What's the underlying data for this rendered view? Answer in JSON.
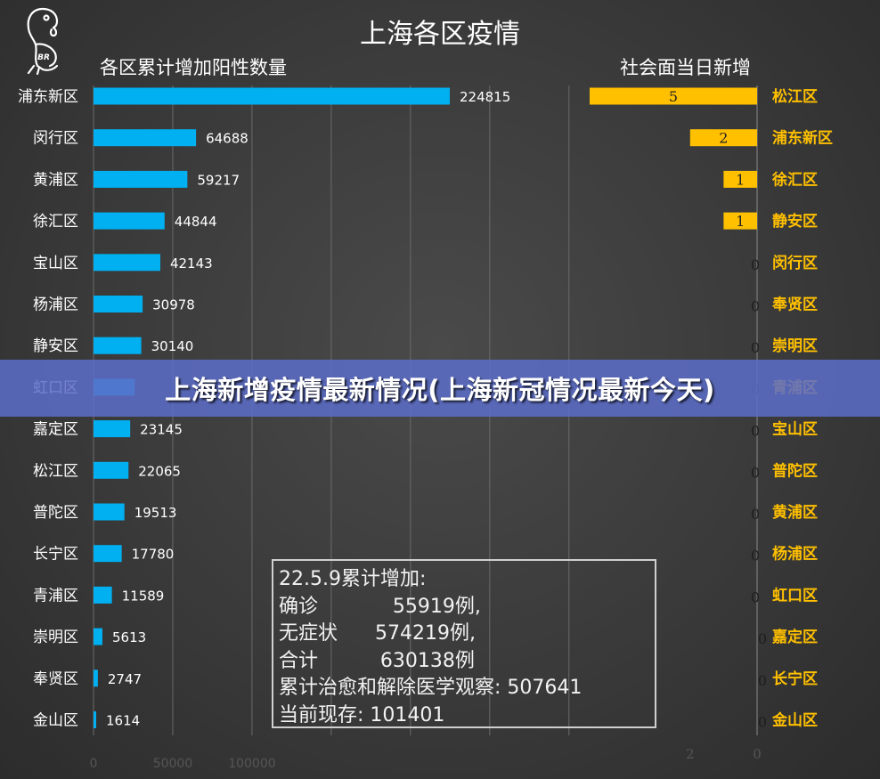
{
  "chart_data": {
    "title": "上海各区疫情",
    "left": {
      "type": "bar",
      "orientation": "horizontal",
      "subtitle": "各区累计增加阳性数量",
      "categories": [
        "浦东新区",
        "闵行区",
        "黄浦区",
        "徐汇区",
        "宝山区",
        "杨浦区",
        "静安区",
        "虹口区",
        "嘉定区",
        "松江区",
        "普陀区",
        "长宁区",
        "青浦区",
        "崇明区",
        "奉贤区",
        "金山区"
      ],
      "values": [
        224815,
        64688,
        59217,
        44844,
        42143,
        30978,
        30140,
        26000,
        23145,
        22065,
        19513,
        17780,
        11589,
        5613,
        2747,
        1614
      ],
      "value_labels": [
        "224815",
        "64688",
        "59217",
        "44844",
        "42143",
        "30978",
        "30140",
        "",
        "23145",
        "22065",
        "19513",
        "17780",
        "11589",
        "5613",
        "2747",
        "1614"
      ],
      "xlim": [
        0,
        300000
      ],
      "xticks": [
        "0",
        "50000",
        "100000"
      ],
      "bar_color": "#00b0f0",
      "gridlines": true
    },
    "right": {
      "type": "bar",
      "orientation": "horizontal",
      "reversed": true,
      "subtitle": "社会面当日新增",
      "categories": [
        "松江区",
        "浦东新区",
        "徐汇区",
        "静安区",
        "闵行区",
        "奉贤区",
        "崇明区",
        "青浦区",
        "宝山区",
        "普陀区",
        "黄浦区",
        "杨浦区",
        "虹口区",
        "嘉定区",
        "长宁区",
        "金山区"
      ],
      "values": [
        5,
        2,
        1,
        1,
        0,
        0,
        0,
        0,
        0,
        0,
        0,
        0,
        0,
        0,
        0,
        0
      ],
      "xlim": [
        0,
        5
      ],
      "xticks": [
        "2",
        "0"
      ],
      "bar_color": "#ffc000",
      "label_color": "#ffc000"
    }
  },
  "summary": {
    "line1": "22.5.9累计增加:",
    "line2": "确诊            55919例,",
    "line3": "无症状      574219例,",
    "line4": "合计          630138例",
    "line5": "累计治愈和解除医学观察: 507641",
    "line6": "当前现存: 101401"
  },
  "banner": {
    "text": "上海新增疫情最新情况(上海新冠情况最新今天)"
  },
  "logo": {
    "icon": "parrot-logo-icon",
    "text": "BR"
  }
}
